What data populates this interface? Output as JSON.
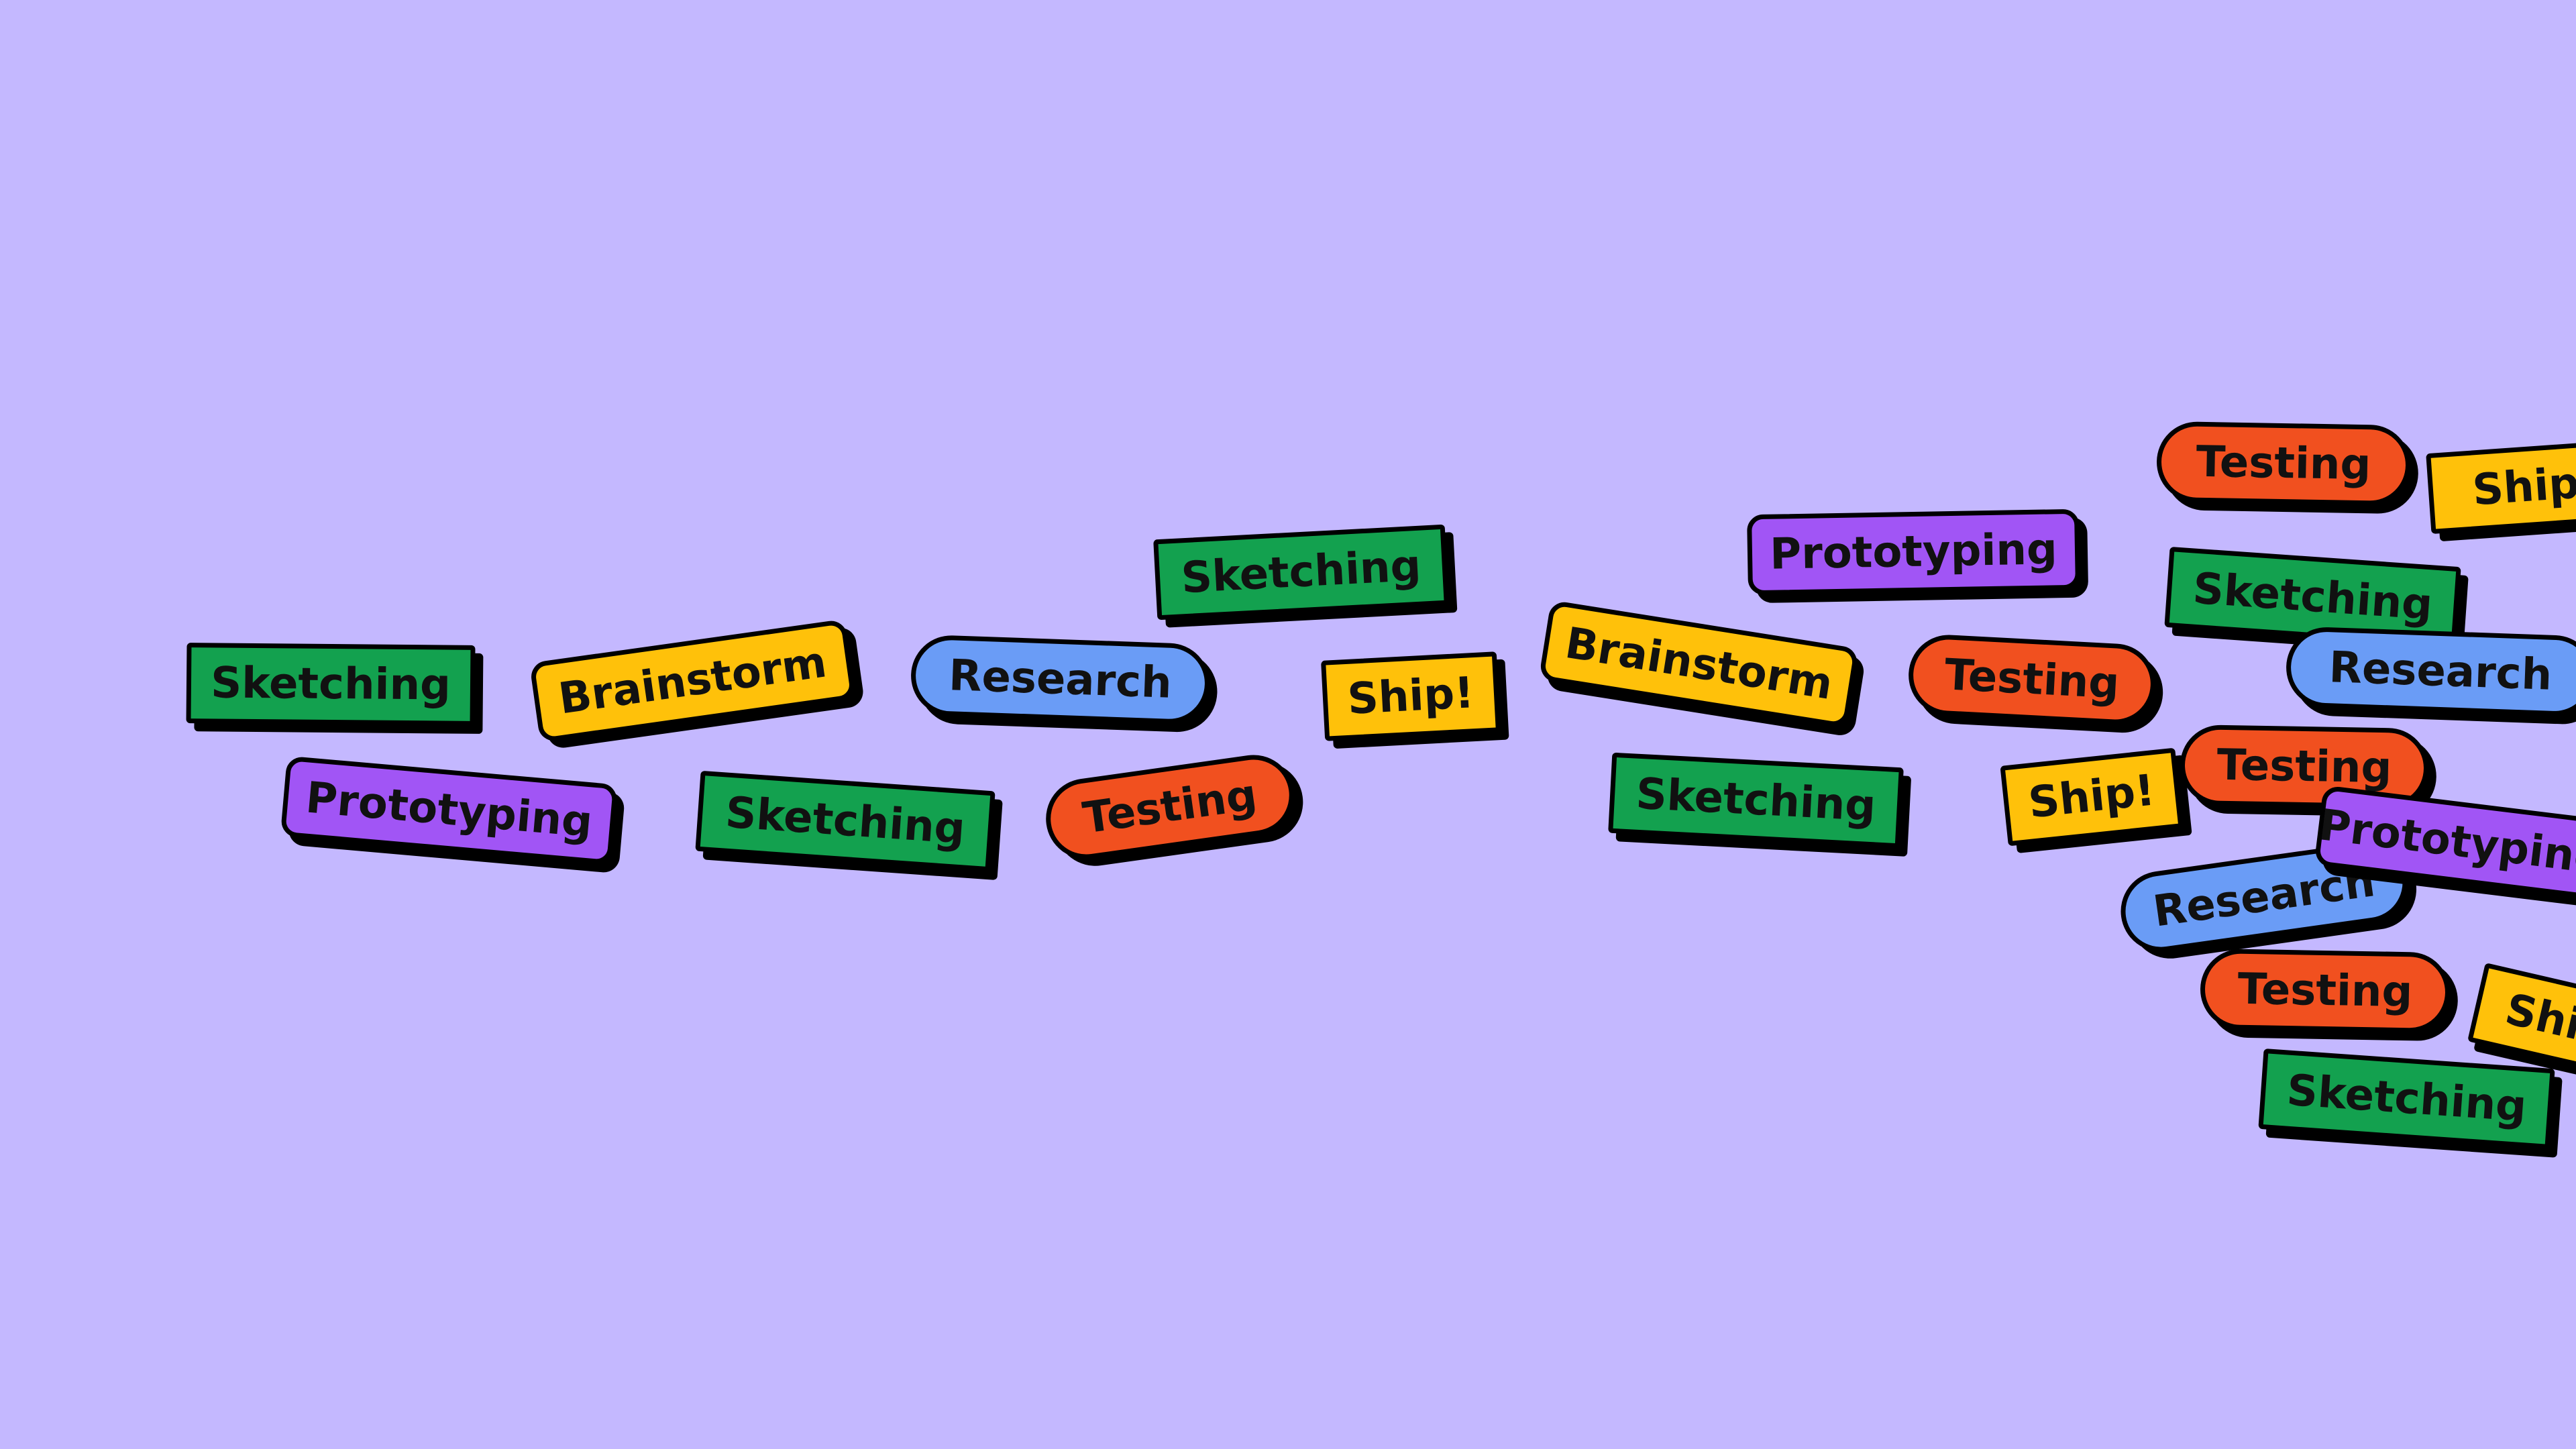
{
  "background_color": "#c4b8ff",
  "colors": {
    "green": "#13a14f",
    "yellow": "#ffc10a",
    "blue": "#6a9cf6",
    "purple": "#a155f5",
    "red": "#f1501f"
  },
  "tags": [
    {
      "label": "Sketching",
      "color": "green",
      "shape": "rect"
    },
    {
      "label": "Brainstorm",
      "color": "yellow",
      "shape": "rounded"
    },
    {
      "label": "Research",
      "color": "blue",
      "shape": "pill"
    },
    {
      "label": "Sketching",
      "color": "green",
      "shape": "rect"
    },
    {
      "label": "Ship!",
      "color": "yellow",
      "shape": "rect"
    },
    {
      "label": "Prototyping",
      "color": "purple",
      "shape": "rounded"
    },
    {
      "label": "Sketching",
      "color": "green",
      "shape": "rect"
    },
    {
      "label": "Testing",
      "color": "red",
      "shape": "pill"
    },
    {
      "label": "Brainstorm",
      "color": "yellow",
      "shape": "rounded"
    },
    {
      "label": "Sketching",
      "color": "green",
      "shape": "rect"
    },
    {
      "label": "Prototyping",
      "color": "purple",
      "shape": "rounded"
    },
    {
      "label": "Testing",
      "color": "red",
      "shape": "pill"
    },
    {
      "label": "Ship!",
      "color": "yellow",
      "shape": "rect"
    },
    {
      "label": "Testing",
      "color": "red",
      "shape": "pill"
    },
    {
      "label": "Ship!",
      "color": "yellow",
      "shape": "rect"
    },
    {
      "label": "Sketching",
      "color": "green",
      "shape": "rect"
    },
    {
      "label": "Research",
      "color": "blue",
      "shape": "pill"
    },
    {
      "label": "Testing",
      "color": "red",
      "shape": "pill"
    },
    {
      "label": "Research",
      "color": "blue",
      "shape": "pill"
    },
    {
      "label": "Prototyping",
      "color": "purple",
      "shape": "rounded"
    },
    {
      "label": "Testing",
      "color": "red",
      "shape": "pill"
    },
    {
      "label": "Ship!",
      "color": "yellow",
      "shape": "rect"
    },
    {
      "label": "Sketching",
      "color": "green",
      "shape": "rect"
    }
  ]
}
